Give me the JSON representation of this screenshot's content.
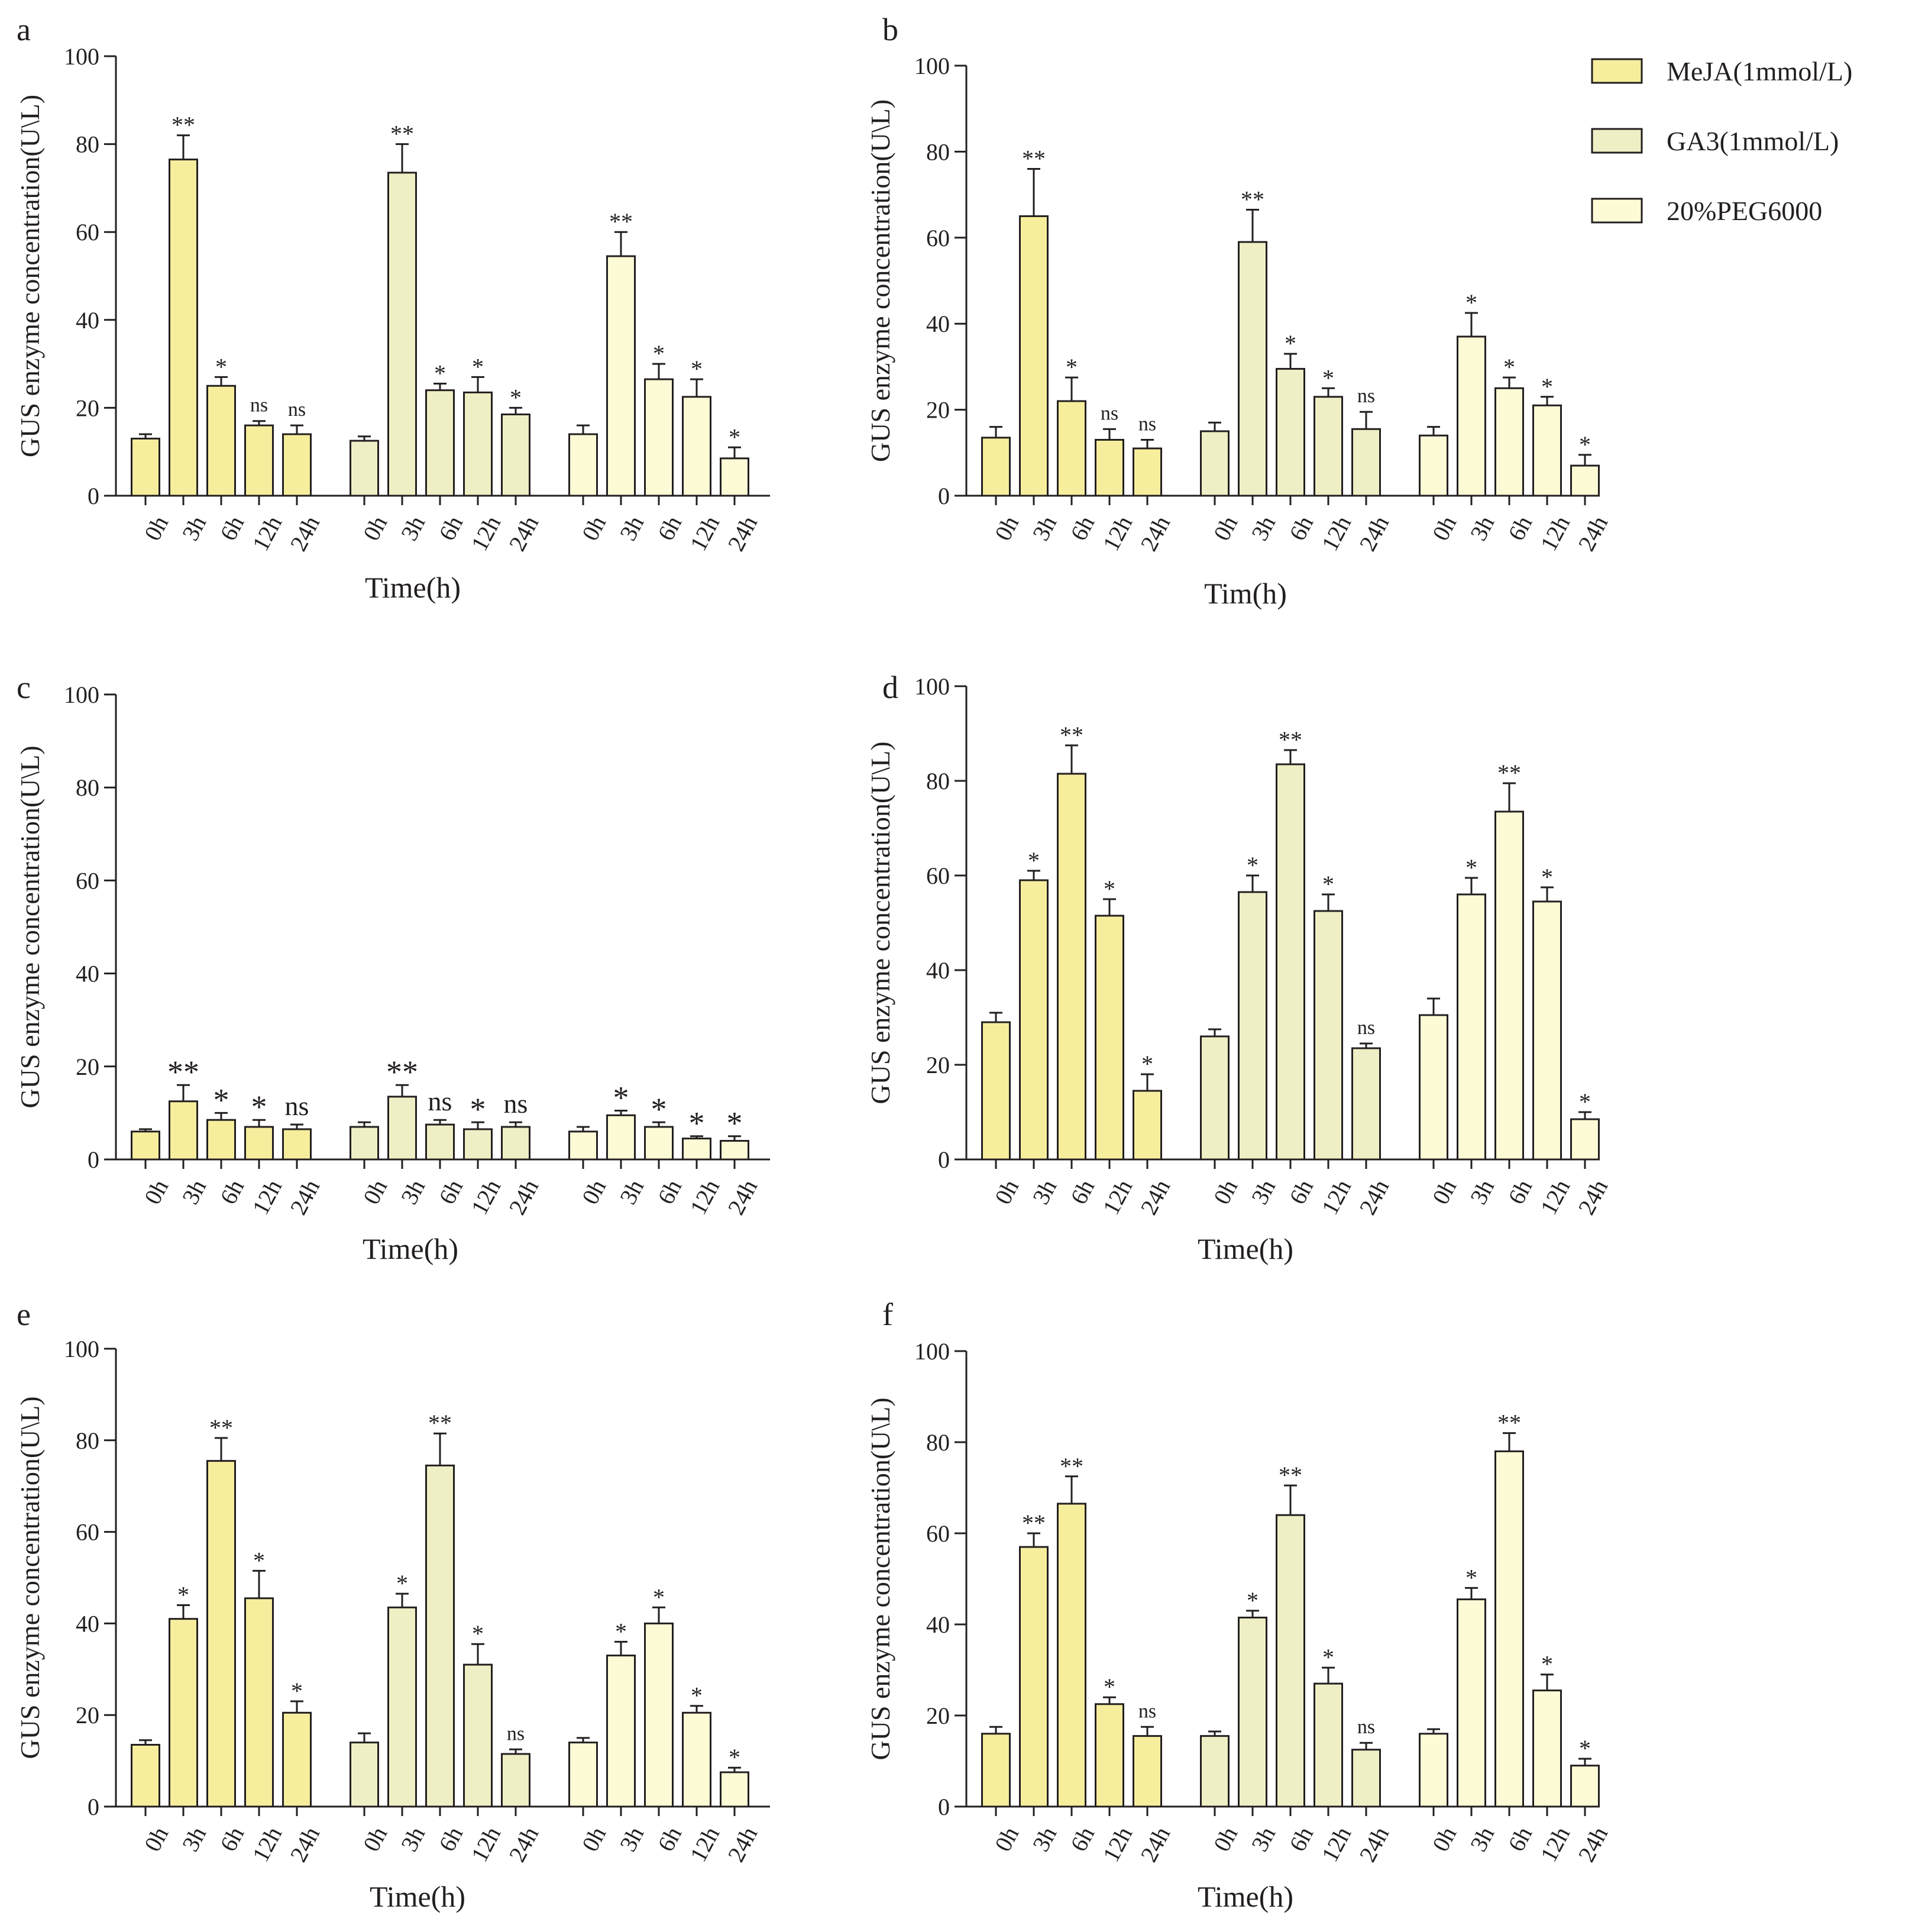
{
  "legend": {
    "position": "top-right",
    "entries": [
      {
        "label": "MeJA(1mmol/L)",
        "color": "#f6ee9d"
      },
      {
        "label": "GA3(1mmol/L)",
        "color": "#eeefc4"
      },
      {
        "label": "20%PEG6000",
        "color": "#fcfbd6"
      }
    ]
  },
  "chart_data": [
    {
      "panel": "a",
      "type": "bar",
      "ylabel": "GUS enzyme concentration(U\\L)",
      "xlabel": "Time(h)",
      "ylim": [
        0,
        100
      ],
      "yticks": [
        "0",
        "20",
        "40",
        "60",
        "80",
        "100"
      ],
      "categories": [
        "0h",
        "3h",
        "6h",
        "12h",
        "24h"
      ],
      "series": [
        {
          "name": "MeJA(1mmol/L)",
          "values": [
            13,
            76.5,
            25,
            16,
            14
          ],
          "errors": [
            1,
            5.5,
            2,
            1,
            2
          ],
          "labels": [
            "",
            "**",
            "*",
            "ns",
            "ns"
          ]
        },
        {
          "name": "GA3(1mmol/L)",
          "values": [
            12.5,
            73.5,
            24,
            23.5,
            18.5
          ],
          "errors": [
            1,
            6.5,
            1.5,
            3.5,
            1.5
          ],
          "labels": [
            "",
            "**",
            "*",
            "*",
            "*"
          ]
        },
        {
          "name": "20%PEG6000",
          "values": [
            14,
            54.5,
            26.5,
            22.5,
            8.5
          ],
          "errors": [
            2,
            5.5,
            3.5,
            4,
            2.5
          ],
          "labels": [
            "",
            "**",
            "*",
            "*",
            "*"
          ]
        }
      ]
    },
    {
      "panel": "b",
      "type": "bar",
      "ylabel": "GUS enzyme concentration(U\\L)",
      "xlabel": "Tim(h)",
      "ylim": [
        0,
        100
      ],
      "yticks": [
        "0",
        "20",
        "40",
        "60",
        "80",
        "100"
      ],
      "categories": [
        "0h",
        "3h",
        "6h",
        "12h",
        "24h"
      ],
      "series": [
        {
          "name": "MeJA(1mmol/L)",
          "values": [
            13.5,
            65,
            22,
            13,
            11
          ],
          "errors": [
            2.5,
            11,
            5.5,
            2.5,
            2
          ],
          "labels": [
            "",
            "**",
            "*",
            "ns",
            "ns"
          ]
        },
        {
          "name": "GA3(1mmol/L)",
          "values": [
            15,
            59,
            29.5,
            23,
            15.5
          ],
          "errors": [
            2,
            7.5,
            3.5,
            2,
            4
          ],
          "labels": [
            "",
            "**",
            "*",
            "*",
            "ns"
          ]
        },
        {
          "name": "20%PEG6000",
          "values": [
            14,
            37,
            25,
            21,
            7
          ],
          "errors": [
            2,
            5.5,
            2.5,
            2,
            2.5
          ],
          "labels": [
            "",
            "*",
            "*",
            "*",
            "*"
          ]
        }
      ]
    },
    {
      "panel": "c",
      "type": "bar",
      "ylabel": "GUS enzyme concentration(U\\L)",
      "xlabel": "Time(h)",
      "ylim": [
        0,
        100
      ],
      "yticks": [
        "0",
        "20",
        "40",
        "60",
        "80",
        "100"
      ],
      "categories": [
        "0h",
        "3h",
        "6h",
        "12h",
        "24h"
      ],
      "series": [
        {
          "name": "MeJA(1mmol/L)",
          "values": [
            6,
            12.5,
            8.5,
            7,
            6.5
          ],
          "errors": [
            0.5,
            3.5,
            1.5,
            1.5,
            1
          ],
          "labels": [
            "",
            "**",
            "*",
            "*",
            "ns"
          ]
        },
        {
          "name": "GA3(1mmol/L)",
          "values": [
            7,
            13.5,
            7.5,
            6.5,
            7
          ],
          "errors": [
            1,
            2.5,
            1,
            1.5,
            1
          ],
          "labels": [
            "",
            "**",
            "ns",
            "*",
            "ns"
          ]
        },
        {
          "name": "20%PEG6000",
          "values": [
            6,
            9.5,
            7,
            4.5,
            4
          ],
          "errors": [
            1,
            1,
            1,
            0.5,
            1
          ],
          "labels": [
            "",
            "*",
            "*",
            "*",
            "*"
          ]
        }
      ]
    },
    {
      "panel": "d",
      "type": "bar",
      "ylabel": "GUS enzyme concentration(U\\L)",
      "xlabel": "Time(h)",
      "ylim": [
        0,
        100
      ],
      "yticks": [
        "0",
        "20",
        "40",
        "60",
        "80",
        "100"
      ],
      "categories": [
        "0h",
        "3h",
        "6h",
        "12h",
        "24h"
      ],
      "series": [
        {
          "name": "MeJA(1mmol/L)",
          "values": [
            29,
            59,
            81.5,
            51.5,
            14.5
          ],
          "errors": [
            2,
            2,
            6,
            3.5,
            3.5
          ],
          "labels": [
            "",
            "*",
            "**",
            "*",
            "*"
          ]
        },
        {
          "name": "GA3(1mmol/L)",
          "values": [
            26,
            56.5,
            83.5,
            52.5,
            23.5
          ],
          "errors": [
            1.5,
            3.5,
            3,
            3.5,
            1
          ],
          "labels": [
            "",
            "*",
            "**",
            "*",
            "ns"
          ]
        },
        {
          "name": "20%PEG6000",
          "values": [
            30.5,
            56,
            73.5,
            54.5,
            8.5
          ],
          "errors": [
            3.5,
            3.5,
            6,
            3,
            1.5
          ],
          "labels": [
            "",
            "*",
            "**",
            "*",
            "*"
          ]
        }
      ]
    },
    {
      "panel": "e",
      "type": "bar",
      "ylabel": "GUS enzyme concentration(U\\L)",
      "xlabel": "Time(h)",
      "ylim": [
        0,
        100
      ],
      "yticks": [
        "0",
        "20",
        "40",
        "60",
        "80",
        "100"
      ],
      "categories": [
        "0h",
        "3h",
        "6h",
        "12h",
        "24h"
      ],
      "series": [
        {
          "name": "MeJA(1mmol/L)",
          "values": [
            13.5,
            41,
            75.5,
            45.5,
            20.5
          ],
          "errors": [
            1,
            3,
            5,
            6,
            2.5
          ],
          "labels": [
            "",
            "*",
            "**",
            "*",
            "*"
          ]
        },
        {
          "name": "GA3(1mmol/L)",
          "values": [
            14,
            43.5,
            74.5,
            31,
            11.5
          ],
          "errors": [
            2,
            3,
            7,
            4.5,
            1
          ],
          "labels": [
            "",
            "*",
            "**",
            "*",
            "ns"
          ]
        },
        {
          "name": "20%PEG6000",
          "values": [
            14,
            33,
            40,
            20.5,
            7.5
          ],
          "errors": [
            1,
            3,
            3.5,
            1.5,
            1
          ],
          "labels": [
            "",
            "*",
            "*",
            "*",
            "*"
          ]
        }
      ]
    },
    {
      "panel": "f",
      "type": "bar",
      "ylabel": "GUS enzyme concentration(U\\L)",
      "xlabel": "Time(h)",
      "ylim": [
        0,
        100
      ],
      "yticks": [
        "0",
        "20",
        "40",
        "60",
        "80",
        "100"
      ],
      "categories": [
        "0h",
        "3h",
        "6h",
        "12h",
        "24h"
      ],
      "series": [
        {
          "name": "MeJA(1mmol/L)",
          "values": [
            16,
            57,
            66.5,
            22.5,
            15.5
          ],
          "errors": [
            1.5,
            3,
            6,
            1.5,
            2
          ],
          "labels": [
            "",
            "**",
            "**",
            "*",
            "ns"
          ]
        },
        {
          "name": "GA3(1mmol/L)",
          "values": [
            15.5,
            41.5,
            64,
            27,
            12.5
          ],
          "errors": [
            1,
            1.5,
            6.5,
            3.5,
            1.5
          ],
          "labels": [
            "",
            "*",
            "**",
            "*",
            "ns"
          ]
        },
        {
          "name": "20%PEG6000",
          "values": [
            16,
            45.5,
            78,
            25.5,
            9
          ],
          "errors": [
            1,
            2.5,
            4,
            3.5,
            1.5
          ],
          "labels": [
            "",
            "*",
            "**",
            "*",
            "*"
          ]
        }
      ]
    }
  ]
}
